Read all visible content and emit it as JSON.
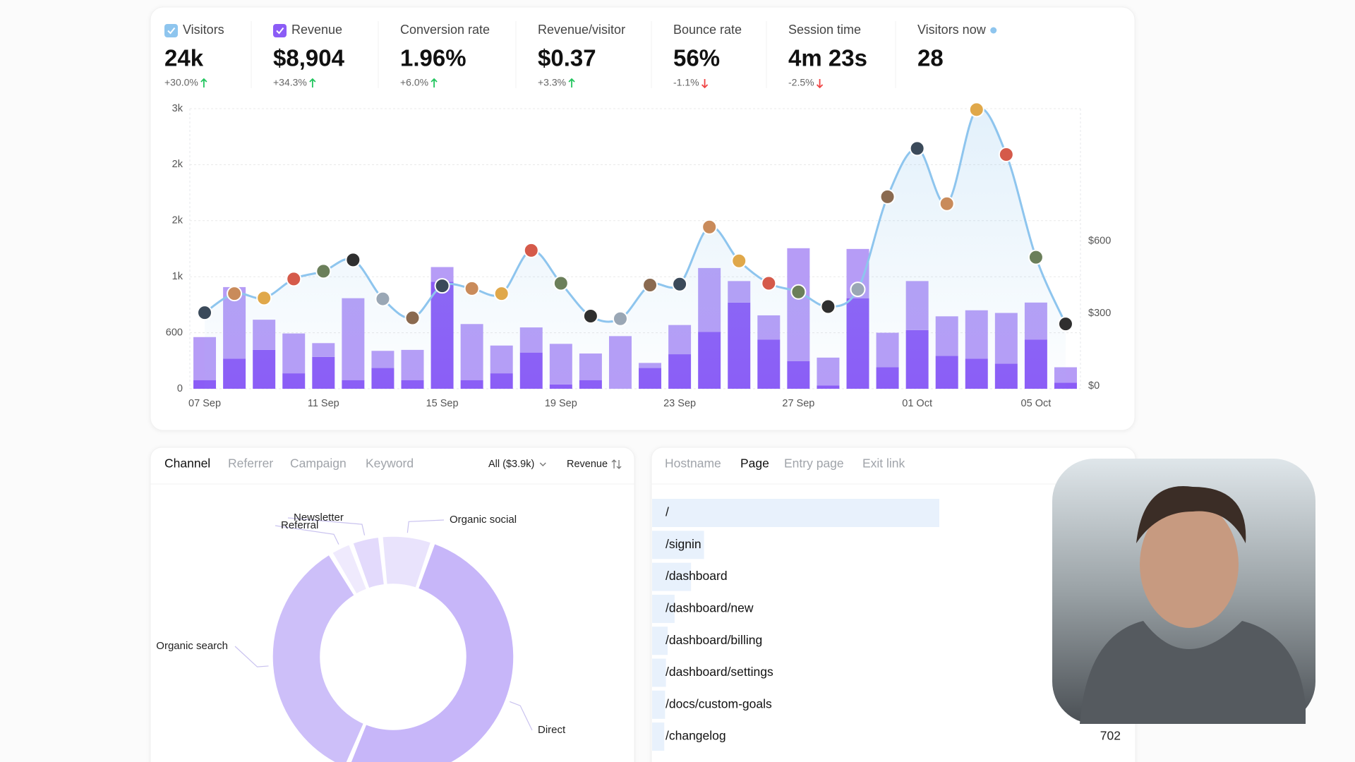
{
  "metrics": [
    {
      "label": "Visitors",
      "value": "24k",
      "change": "+30.0%",
      "trend": "up",
      "checkbox_color": "#8ec5ee"
    },
    {
      "label": "Revenue",
      "value": "$8,904",
      "change": "+34.3%",
      "trend": "up",
      "checkbox_color": "#8b5cf6"
    },
    {
      "label": "Conversion rate",
      "value": "1.96%",
      "change": "+6.0%",
      "trend": "up"
    },
    {
      "label": "Revenue/visitor",
      "value": "$0.37",
      "change": "+3.3%",
      "trend": "up"
    },
    {
      "label": "Bounce rate",
      "value": "56%",
      "change": "-1.1%",
      "trend": "down"
    },
    {
      "label": "Session time",
      "value": "4m 23s",
      "change": "-2.5%",
      "trend": "down"
    },
    {
      "label": "Visitors now",
      "value": "28",
      "live_color": "#8ec5ee"
    }
  ],
  "chart": {
    "type": "bar-line",
    "categories": [
      "07 Sep",
      null,
      null,
      null,
      "11 Sep",
      null,
      null,
      null,
      "15 Sep",
      null,
      null,
      null,
      "19 Sep",
      null,
      null,
      null,
      "23 Sep",
      null,
      null,
      null,
      "27 Sep",
      null,
      null,
      null,
      "01 Oct",
      null,
      null,
      null,
      "05 Oct",
      null
    ],
    "series": [
      {
        "type": "line",
        "color": "#8ec5ee",
        "values": [
          815,
          1019,
          972,
          1176,
          1259,
          1380,
          963,
          759,
          1102,
          1074,
          1019,
          1482,
          1130,
          778,
          750,
          1111,
          1120,
          1732,
          1370,
          1130,
          1037,
          880,
          1065,
          2056,
          2574,
          1982,
          2990,
          2509,
          1408,
          694
        ]
      },
      {
        "type": "bar",
        "axis": "y2",
        "color": "#8b5cf6",
        "values": [
          36,
          125,
          161,
          64,
          132,
          36,
          86,
          36,
          443,
          36,
          64,
          150,
          18,
          36,
          0,
          86,
          143,
          236,
          357,
          204,
          114,
          14,
          375,
          89,
          243,
          136,
          125,
          104,
          204,
          25
        ]
      },
      {
        "type": "bar",
        "axis": "y2",
        "color": "#b69cf6",
        "values": [
          178,
          296,
          125,
          165,
          57,
          339,
          71,
          125,
          61,
          232,
          115,
          104,
          168,
          110,
          218,
          21,
          121,
          264,
          89,
          100,
          468,
          115,
          204,
          143,
          203,
          164,
          200,
          210,
          153,
          64
        ]
      }
    ],
    "ylim": [
      0,
      3000
    ],
    "yticks": [
      0,
      600,
      {
        "value": 1200,
        "label": "1k"
      },
      {
        "value": 1800,
        "label": "2k"
      },
      {
        "value": 2400,
        "label": "2k"
      },
      {
        "value": 3000,
        "label": "3k"
      }
    ],
    "y2lim": [
      0,
      1160
    ],
    "y2ticks": [
      {
        "value": 0,
        "label": "$0"
      },
      {
        "value": 300,
        "label": "$300"
      },
      {
        "value": 600,
        "label": "$600"
      }
    ],
    "grid": true
  },
  "channels": {
    "type": "pie",
    "tabs": [
      "Channel",
      "Referrer",
      "Campaign",
      "Keyword"
    ],
    "active_tab": 0,
    "filter": "All ($3.9k)",
    "sort": "Revenue",
    "categories": [
      "Organic social",
      "Direct",
      "Organic search",
      "Referral",
      "Newsletter"
    ],
    "values": [
      7,
      51,
      35,
      3,
      4
    ],
    "colors": [
      "#e9e3fc",
      "#c7b6f9",
      "#cdbff9",
      "#efeafd",
      "#e3dafc"
    ]
  },
  "pages": {
    "tabs": [
      "Hostname",
      "Page",
      "Entry page",
      "Exit link"
    ],
    "active_tab": 1,
    "bar_color": "#e8f1fc",
    "rows": [
      {
        "label": "/",
        "visitors": 16600
      },
      {
        "label": "/signin",
        "visitors": 3000
      },
      {
        "label": "/dashboard",
        "visitors": 2250
      },
      {
        "label": "/dashboard/new",
        "visitors": 1300
      },
      {
        "label": "/dashboard/billing",
        "visitors": 900
      },
      {
        "label": "/dashboard/settings",
        "visitors": 800
      },
      {
        "label": "/docs/custom-goals",
        "visitors": 750
      },
      {
        "label": "/changelog",
        "visitors": 702
      }
    ]
  }
}
